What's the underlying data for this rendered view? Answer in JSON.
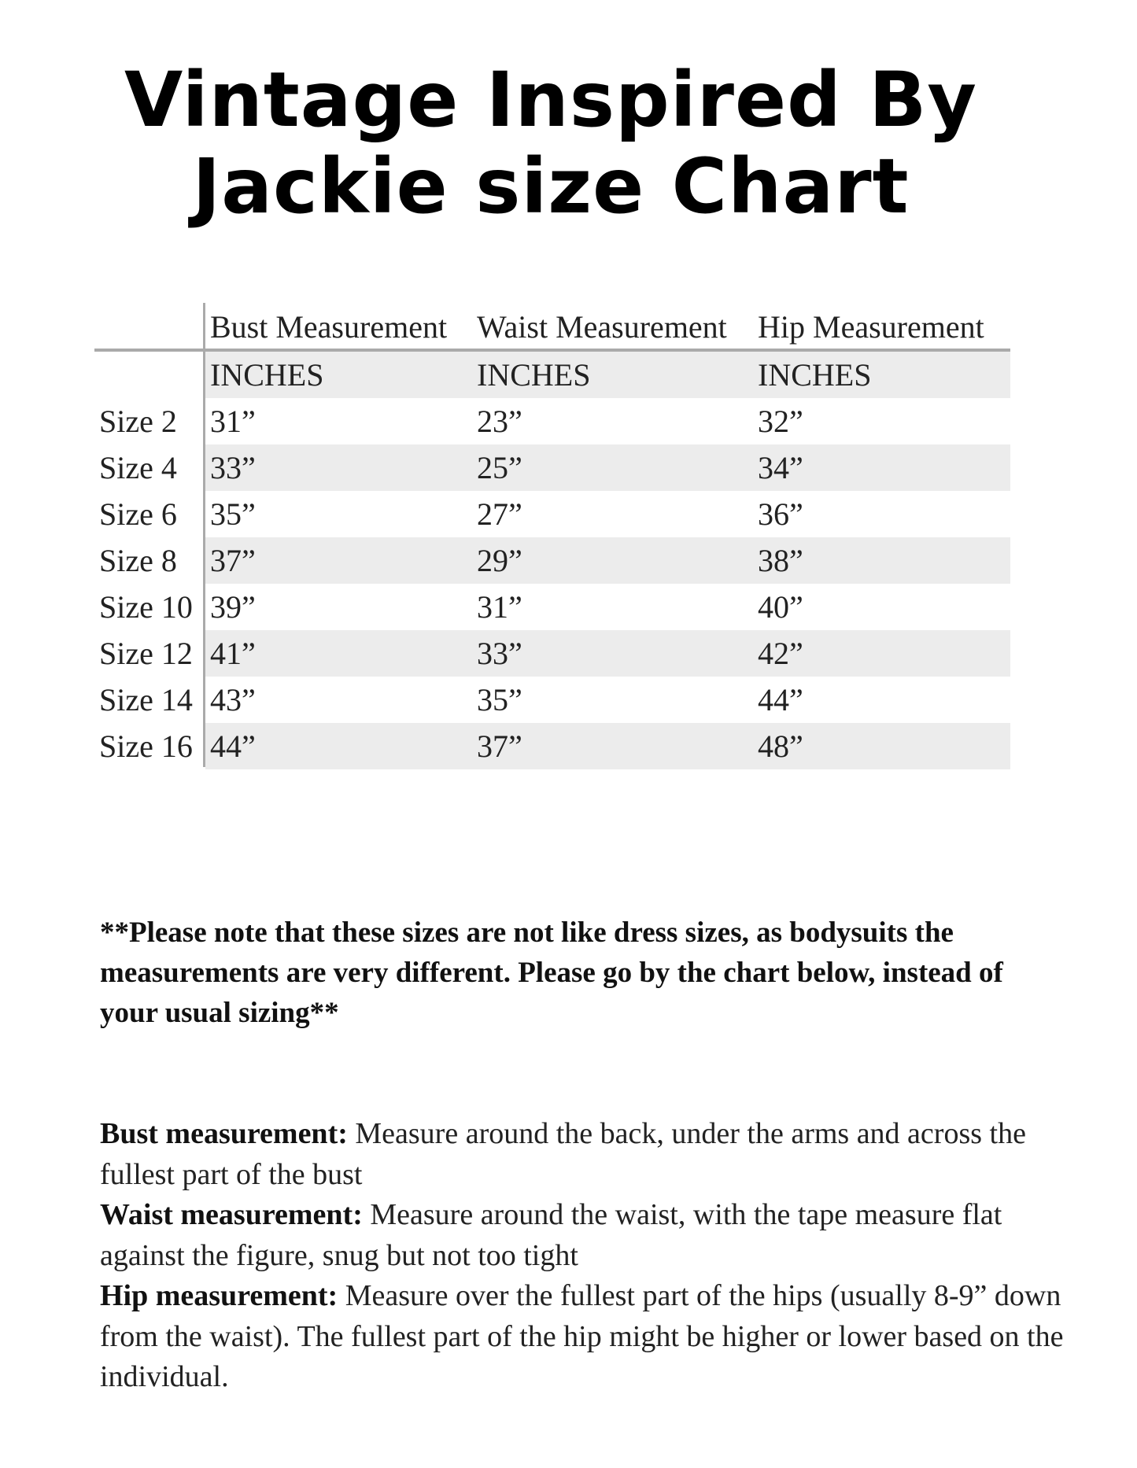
{
  "title": {
    "line1": "Vintage Inspired By",
    "line2": "Jackie size Chart"
  },
  "table": {
    "headers": [
      "",
      "Bust Measurement",
      "Waist Measurement",
      "Hip Measurement"
    ],
    "units": [
      "",
      "INCHES",
      "INCHES",
      "INCHES"
    ],
    "rows": [
      [
        "Size 2",
        "31”",
        "23”",
        "32”"
      ],
      [
        "Size 4",
        "33”",
        "25”",
        "34”"
      ],
      [
        "Size 6",
        "35”",
        "27”",
        "36”"
      ],
      [
        "Size 8",
        "37”",
        "29”",
        "38”"
      ],
      [
        "Size 10",
        "39”",
        "31”",
        "40”"
      ],
      [
        "Size 12",
        "41”",
        "33”",
        "42”"
      ],
      [
        "Size 14",
        "43”",
        "35”",
        "44”"
      ],
      [
        "Size 16",
        "44”",
        "37”",
        "48”"
      ]
    ],
    "shade_color": "#ececec"
  },
  "note": "**Please note that these sizes are not like dress sizes, as bodysuits the measurements are very different. Please go by the chart below, instead of your usual sizing**",
  "definitions": [
    {
      "term": "Bust measurement:",
      "text": " Measure around the back, under the arms and across the fullest part of the bust"
    },
    {
      "term": "Waist measurement:",
      "text": " Measure around the waist, with the tape measure flat against the figure, snug but not too tight"
    },
    {
      "term": "Hip measurement:",
      "text": " Measure over the fullest part of the hips (usually 8-9” down from the waist). The fullest part of the hip might be higher or lower based on the individual."
    }
  ]
}
